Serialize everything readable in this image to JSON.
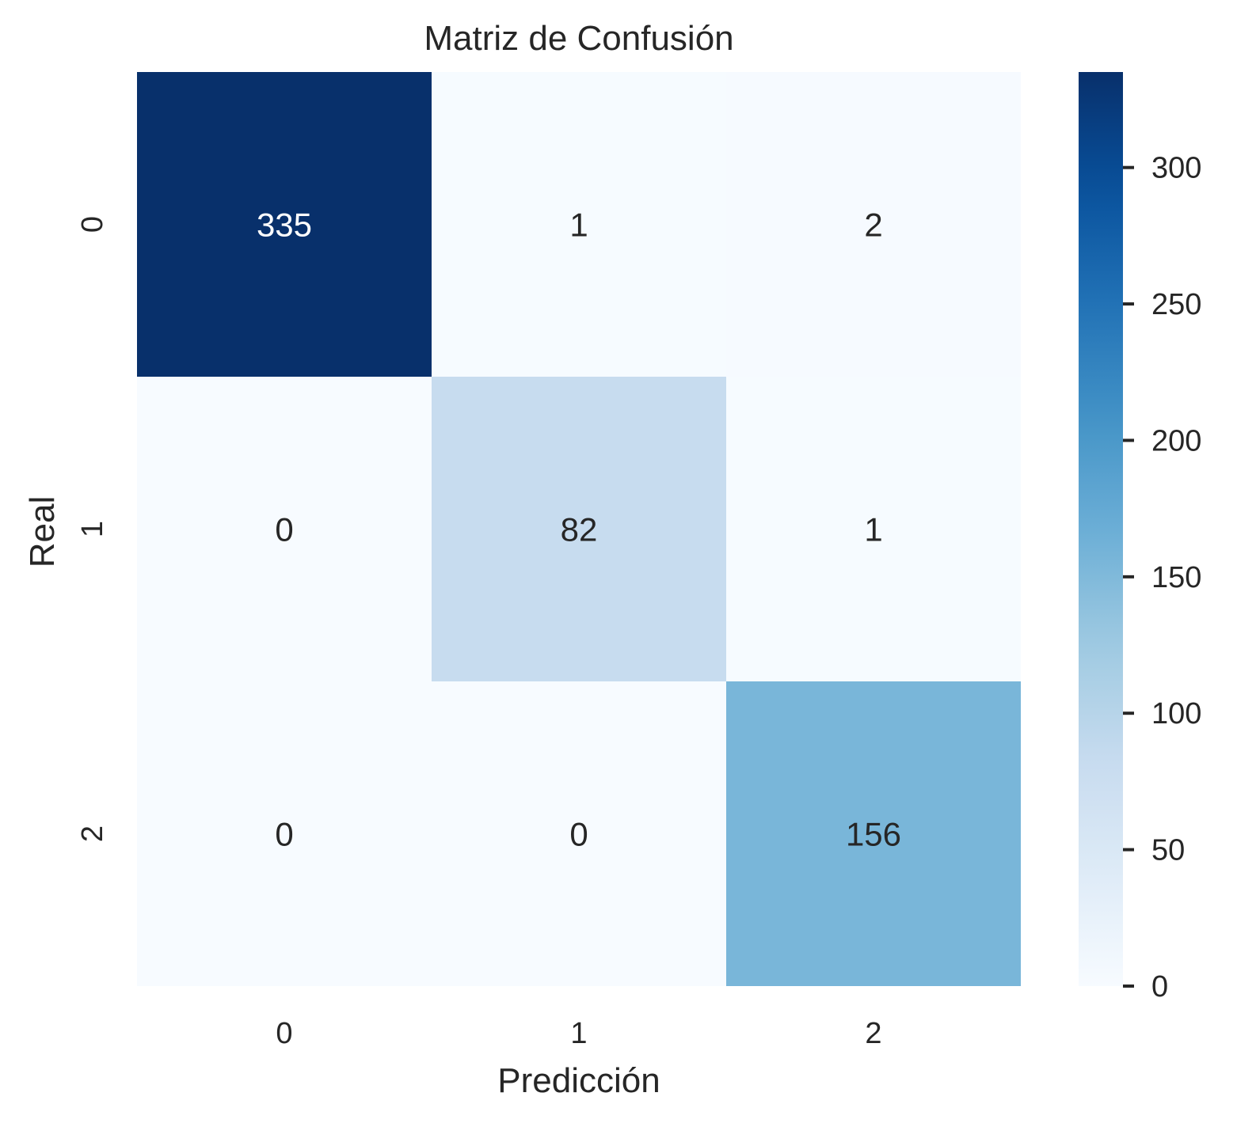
{
  "chart_data": {
    "type": "heatmap",
    "title": "Matriz de Confusión",
    "xlabel": "Predicción",
    "ylabel": "Real",
    "x_categories": [
      "0",
      "1",
      "2"
    ],
    "y_categories": [
      "0",
      "1",
      "2"
    ],
    "values": [
      [
        335,
        1,
        2
      ],
      [
        0,
        82,
        1
      ],
      [
        0,
        0,
        156
      ]
    ],
    "colorbar": {
      "min": 0,
      "max": 335,
      "ticks": [
        0,
        50,
        100,
        150,
        200,
        250,
        300
      ],
      "tick_labels": [
        "0",
        "50",
        "100",
        "150",
        "200",
        "250",
        "300"
      ]
    },
    "colormap": "Blues",
    "grid": false
  }
}
